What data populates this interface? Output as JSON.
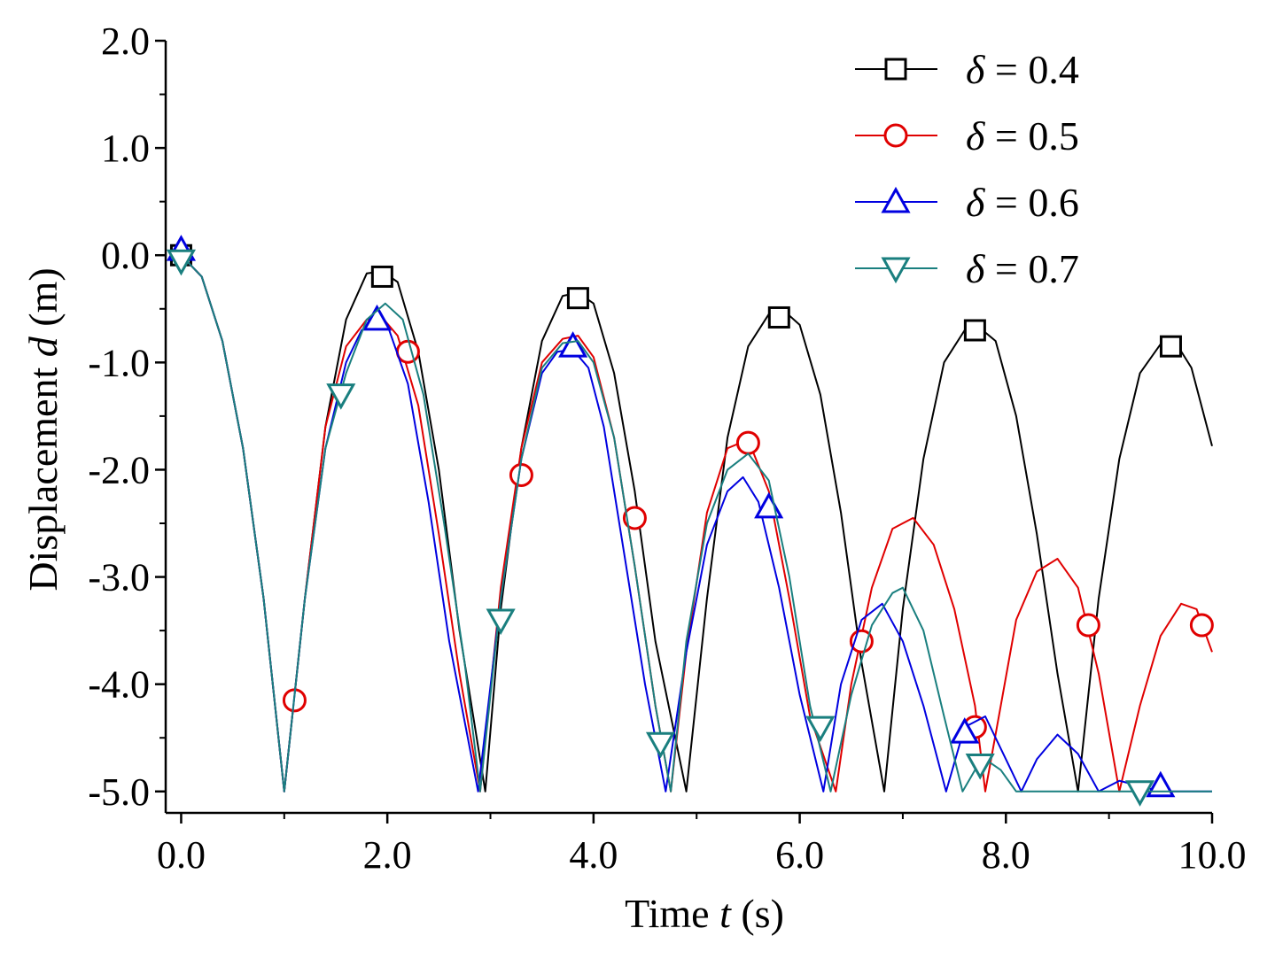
{
  "chart_data": {
    "type": "line",
    "xlabel": {
      "prefix": "Time ",
      "var": "t",
      "suffix": " (s)"
    },
    "ylabel": {
      "prefix": "Displacement ",
      "var": "d",
      "suffix": " (m)"
    },
    "xlim": [
      -0.15,
      10.0
    ],
    "ylim": [
      -5.2,
      2.0
    ],
    "xticks": [
      0,
      2,
      4,
      6,
      8,
      10
    ],
    "xtick_labels": [
      "0.0",
      "2.0",
      "4.0",
      "6.0",
      "8.0",
      "10.0"
    ],
    "yticks": [
      2,
      1,
      0,
      -1,
      -2,
      -3,
      -4,
      -5
    ],
    "ytick_labels": [
      "2.0",
      "1.0",
      "0.0",
      "-1.0",
      "-2.0",
      "-3.0",
      "-4.0",
      "-5.0"
    ],
    "grid": false,
    "legend_position": "top-right",
    "series": [
      {
        "name": "δ = 0.4",
        "color": "#000000",
        "marker": "square",
        "x": [
          0,
          0.2,
          0.4,
          0.6,
          0.8,
          1.0,
          1.2,
          1.4,
          1.6,
          1.8,
          1.95,
          2.1,
          2.3,
          2.5,
          2.7,
          2.95,
          3.1,
          3.3,
          3.5,
          3.7,
          3.85,
          4.0,
          4.2,
          4.4,
          4.6,
          4.9,
          5.1,
          5.3,
          5.5,
          5.7,
          5.85,
          6.0,
          6.2,
          6.4,
          6.6,
          6.82,
          7.0,
          7.2,
          7.4,
          7.6,
          7.75,
          7.9,
          8.1,
          8.3,
          8.5,
          8.7,
          8.9,
          9.1,
          9.3,
          9.5,
          9.65,
          9.8,
          10.0
        ],
        "y": [
          0.0,
          -0.2,
          -0.8,
          -1.8,
          -3.2,
          -5.0,
          -3.2,
          -1.6,
          -0.6,
          -0.17,
          -0.15,
          -0.25,
          -0.9,
          -2.0,
          -3.5,
          -5.0,
          -3.3,
          -1.8,
          -0.8,
          -0.38,
          -0.35,
          -0.45,
          -1.1,
          -2.2,
          -3.6,
          -5.0,
          -3.2,
          -1.7,
          -0.85,
          -0.55,
          -0.52,
          -0.65,
          -1.3,
          -2.4,
          -3.8,
          -5.0,
          -3.3,
          -1.9,
          -1.0,
          -0.7,
          -0.68,
          -0.8,
          -1.5,
          -2.6,
          -3.9,
          -5.0,
          -3.2,
          -1.9,
          -1.1,
          -0.83,
          -0.82,
          -1.05,
          -1.78
        ],
        "markers_x": [
          0,
          1.95,
          3.85,
          5.8,
          7.7,
          9.6
        ],
        "markers_y": [
          0.0,
          -0.2,
          -0.4,
          -0.58,
          -0.7,
          -0.85
        ]
      },
      {
        "name": "δ = 0.5",
        "color": "#e00000",
        "marker": "circle",
        "x": [
          0,
          0.2,
          0.4,
          0.6,
          0.8,
          1.0,
          1.2,
          1.4,
          1.6,
          1.8,
          1.95,
          2.1,
          2.3,
          2.5,
          2.7,
          2.9,
          3.1,
          3.3,
          3.5,
          3.7,
          3.85,
          4.0,
          4.2,
          4.4,
          4.6,
          4.75,
          4.9,
          5.1,
          5.3,
          5.5,
          5.7,
          5.9,
          6.1,
          6.35,
          6.5,
          6.7,
          6.9,
          7.1,
          7.3,
          7.5,
          7.7,
          7.8,
          7.95,
          8.1,
          8.3,
          8.5,
          8.7,
          8.9,
          9.1,
          9.3,
          9.5,
          9.7,
          9.85,
          10.0
        ],
        "y": [
          0.0,
          -0.2,
          -0.8,
          -1.8,
          -3.2,
          -5.0,
          -3.2,
          -1.6,
          -0.85,
          -0.6,
          -0.58,
          -0.75,
          -1.4,
          -2.6,
          -3.9,
          -5.0,
          -3.1,
          -1.8,
          -1.0,
          -0.78,
          -0.75,
          -0.95,
          -1.7,
          -2.9,
          -4.2,
          -5.0,
          -3.7,
          -2.4,
          -1.8,
          -1.72,
          -2.2,
          -3.2,
          -4.3,
          -5.0,
          -4.0,
          -3.1,
          -2.55,
          -2.45,
          -2.7,
          -3.3,
          -4.2,
          -5.0,
          -4.2,
          -3.4,
          -2.95,
          -2.83,
          -3.1,
          -3.9,
          -5.0,
          -4.2,
          -3.55,
          -3.25,
          -3.3,
          -3.7
        ],
        "markers_x": [
          1.1,
          2.2,
          3.3,
          4.4,
          5.5,
          6.6,
          7.7,
          8.8,
          9.9
        ],
        "markers_y": [
          -4.15,
          -0.9,
          -2.05,
          -2.45,
          -1.75,
          -3.6,
          -4.4,
          -3.45,
          -3.45
        ]
      },
      {
        "name": "δ = 0.6",
        "color": "#0000e0",
        "marker": "triangle-up",
        "x": [
          0,
          0.2,
          0.4,
          0.6,
          0.8,
          1.0,
          1.2,
          1.4,
          1.6,
          1.75,
          1.9,
          2.0,
          2.2,
          2.4,
          2.6,
          2.88,
          3.1,
          3.3,
          3.5,
          3.65,
          3.8,
          3.95,
          4.1,
          4.3,
          4.5,
          4.7,
          4.9,
          5.1,
          5.3,
          5.45,
          5.6,
          5.8,
          6.0,
          6.23,
          6.4,
          6.6,
          6.8,
          7.0,
          7.2,
          7.42,
          7.6,
          7.8,
          8.0,
          8.15,
          8.3,
          8.5,
          8.7,
          8.9,
          9.1,
          9.3,
          9.5,
          9.7,
          9.9,
          10.0
        ],
        "y": [
          0.0,
          -0.2,
          -0.8,
          -1.8,
          -3.2,
          -5.0,
          -3.2,
          -1.8,
          -1.0,
          -0.7,
          -0.6,
          -0.65,
          -1.2,
          -2.3,
          -3.6,
          -5.0,
          -3.2,
          -1.9,
          -1.1,
          -0.9,
          -0.88,
          -1.05,
          -1.6,
          -2.8,
          -4.0,
          -5.0,
          -3.7,
          -2.7,
          -2.2,
          -2.07,
          -2.3,
          -3.1,
          -4.1,
          -5.0,
          -4.0,
          -3.4,
          -3.25,
          -3.6,
          -4.2,
          -5.0,
          -4.4,
          -4.3,
          -4.7,
          -5.0,
          -4.7,
          -4.47,
          -4.65,
          -5.0,
          -4.9,
          -4.95,
          -5.0,
          -5.0,
          -5.0,
          -5.0
        ],
        "markers_x": [
          0,
          1.9,
          3.8,
          5.7,
          7.6,
          9.5
        ],
        "markers_y": [
          0.05,
          -0.6,
          -0.85,
          -2.35,
          -4.45,
          -4.95
        ]
      },
      {
        "name": "δ = 0.7",
        "color": "#1a7f7f",
        "marker": "triangle-down",
        "x": [
          0,
          0.2,
          0.4,
          0.6,
          0.8,
          1.0,
          1.2,
          1.4,
          1.6,
          1.8,
          1.98,
          2.15,
          2.35,
          2.55,
          2.75,
          2.9,
          3.1,
          3.3,
          3.5,
          3.7,
          3.85,
          4.0,
          4.2,
          4.4,
          4.6,
          4.75,
          4.9,
          5.1,
          5.3,
          5.5,
          5.7,
          5.9,
          6.1,
          6.3,
          6.5,
          6.7,
          6.9,
          7.0,
          7.2,
          7.4,
          7.58,
          7.7,
          7.8,
          7.95,
          8.1,
          8.3,
          8.6,
          9.0,
          9.5,
          10.0
        ],
        "y": [
          0.0,
          -0.2,
          -0.8,
          -1.8,
          -3.2,
          -5.0,
          -3.2,
          -1.8,
          -1.1,
          -0.6,
          -0.45,
          -0.6,
          -1.3,
          -2.5,
          -3.8,
          -5.0,
          -3.2,
          -1.9,
          -1.05,
          -0.82,
          -0.8,
          -1.0,
          -1.7,
          -2.9,
          -4.2,
          -5.0,
          -3.6,
          -2.5,
          -2.0,
          -1.85,
          -2.1,
          -3.0,
          -4.2,
          -5.0,
          -4.1,
          -3.45,
          -3.15,
          -3.1,
          -3.5,
          -4.3,
          -5.0,
          -4.8,
          -4.7,
          -4.8,
          -5.0,
          -5.0,
          -5.0,
          -5.0,
          -5.0,
          -5.0
        ],
        "markers_x": [
          0,
          1.55,
          3.1,
          4.65,
          6.2,
          7.75,
          9.3
        ],
        "markers_y": [
          -0.05,
          -1.3,
          -3.4,
          -4.55,
          -4.4,
          -4.75,
          -5.0
        ]
      }
    ]
  }
}
